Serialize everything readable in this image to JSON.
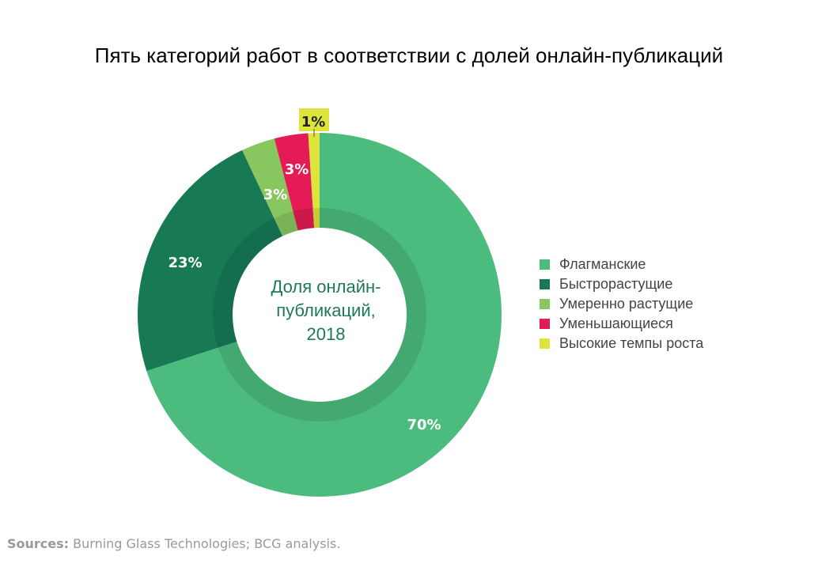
{
  "chart_data": {
    "type": "pie",
    "title": "Пять категорий работ в соответствии с долей онлайн-публикаций",
    "center_label": [
      "Доля онлайн-",
      "публикаций,",
      "2018"
    ],
    "categories": [
      "Флагманские",
      "Быстрорастущие",
      "Умеренно растущие",
      "Уменьшающиеся",
      "Высокие темпы роста"
    ],
    "values": [
      70,
      23,
      3,
      3,
      1
    ],
    "data_labels": [
      "70%",
      "23%",
      "3%",
      "3%",
      "1%"
    ],
    "colors": [
      "#4cbc7e",
      "#177a55",
      "#88c760",
      "#e51b55",
      "#dde43b"
    ],
    "legend_position": "right",
    "donut": true
  },
  "sources": {
    "label": "Sources:",
    "text": " Burning Glass Technologies; BCG analysis."
  }
}
